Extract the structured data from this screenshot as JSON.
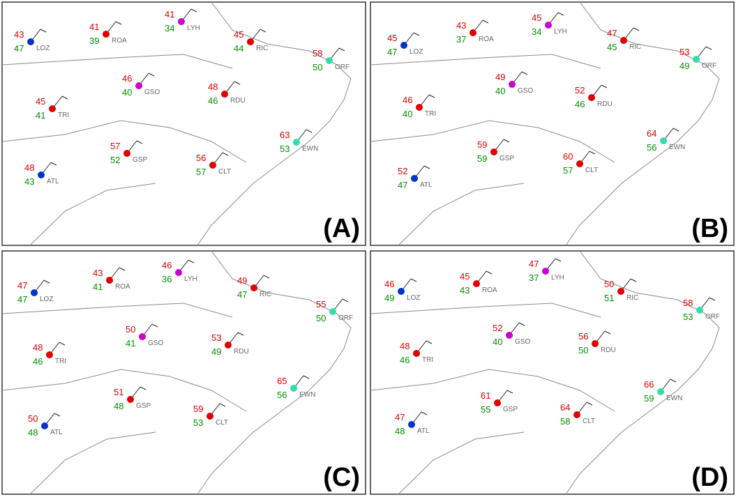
{
  "panels": [
    {
      "label": "(A)",
      "stations": [
        {
          "id": "LOZ",
          "temp": 43,
          "dew": 47,
          "color": "#0033cc"
        },
        {
          "id": "ROA",
          "temp": 41,
          "dew": 39,
          "color": "#e00000"
        },
        {
          "id": "LYH",
          "temp": 41,
          "dew": 34,
          "color": "#cc00cc"
        },
        {
          "id": "RIC",
          "temp": 45,
          "dew": 44,
          "color": "#e00000"
        },
        {
          "id": "ORF",
          "temp": 58,
          "dew": 50,
          "color": "#33ddaa"
        },
        {
          "id": "TRI",
          "temp": 45,
          "dew": 41,
          "color": "#e00000"
        },
        {
          "id": "GSO",
          "temp": 46,
          "dew": 40,
          "color": "#cc00cc"
        },
        {
          "id": "RDU",
          "temp": 48,
          "dew": 46,
          "color": "#e00000"
        },
        {
          "id": "EWN",
          "temp": 63,
          "dew": 53,
          "color": "#33ddaa"
        },
        {
          "id": "ATL",
          "temp": 48,
          "dew": 43,
          "color": "#0033cc"
        },
        {
          "id": "GSP",
          "temp": 57,
          "dew": 52,
          "color": "#e00000"
        },
        {
          "id": "CLT",
          "temp": 56,
          "dew": 57,
          "color": "#e00000"
        }
      ]
    },
    {
      "label": "(B)",
      "stations": [
        {
          "id": "LOZ",
          "temp": 45,
          "dew": 47,
          "color": "#0033cc"
        },
        {
          "id": "ROA",
          "temp": 43,
          "dew": 37,
          "color": "#e00000"
        },
        {
          "id": "LYH",
          "temp": 45,
          "dew": 34,
          "color": "#cc00cc"
        },
        {
          "id": "RIC",
          "temp": 47,
          "dew": 45,
          "color": "#e00000"
        },
        {
          "id": "ORF",
          "temp": 53,
          "dew": 49,
          "color": "#33ddaa"
        },
        {
          "id": "TRI",
          "temp": 46,
          "dew": 40,
          "color": "#e00000"
        },
        {
          "id": "GSO",
          "temp": 49,
          "dew": 40,
          "color": "#cc00cc"
        },
        {
          "id": "RDU",
          "temp": 52,
          "dew": 46,
          "color": "#e00000"
        },
        {
          "id": "EWN",
          "temp": 64,
          "dew": 56,
          "color": "#33ddaa"
        },
        {
          "id": "ATL",
          "temp": 52,
          "dew": 47,
          "color": "#0033cc"
        },
        {
          "id": "GSP",
          "temp": 59,
          "dew": 59,
          "color": "#e00000"
        },
        {
          "id": "CLT",
          "temp": 60,
          "dew": 57,
          "color": "#e00000"
        }
      ]
    },
    {
      "label": "(C)",
      "stations": [
        {
          "id": "LOZ",
          "temp": 47,
          "dew": 47,
          "color": "#0033cc"
        },
        {
          "id": "ROA",
          "temp": 43,
          "dew": 41,
          "color": "#e00000"
        },
        {
          "id": "LYH",
          "temp": 46,
          "dew": 36,
          "color": "#cc00cc"
        },
        {
          "id": "RIC",
          "temp": 49,
          "dew": 47,
          "color": "#e00000"
        },
        {
          "id": "ORF",
          "temp": 55,
          "dew": 50,
          "color": "#33ddaa"
        },
        {
          "id": "TRI",
          "temp": 48,
          "dew": 46,
          "color": "#e00000"
        },
        {
          "id": "GSO",
          "temp": 50,
          "dew": 41,
          "color": "#cc00cc"
        },
        {
          "id": "RDU",
          "temp": 53,
          "dew": 49,
          "color": "#e00000"
        },
        {
          "id": "EWN",
          "temp": 65,
          "dew": 56,
          "color": "#33ddaa"
        },
        {
          "id": "ATL",
          "temp": 50,
          "dew": 48,
          "color": "#0033cc"
        },
        {
          "id": "GSP",
          "temp": 51,
          "dew": 48,
          "color": "#e00000"
        },
        {
          "id": "CLT",
          "temp": 59,
          "dew": 53,
          "color": "#e00000"
        }
      ]
    },
    {
      "label": "(D)",
      "stations": [
        {
          "id": "LOZ",
          "temp": 46,
          "dew": 49,
          "color": "#0033cc"
        },
        {
          "id": "ROA",
          "temp": 45,
          "dew": 43,
          "color": "#e00000"
        },
        {
          "id": "LYH",
          "temp": 47,
          "dew": 37,
          "color": "#cc00cc"
        },
        {
          "id": "RIC",
          "temp": 50,
          "dew": 51,
          "color": "#e00000"
        },
        {
          "id": "ORF",
          "temp": 58,
          "dew": 53,
          "color": "#33ddaa"
        },
        {
          "id": "TRI",
          "temp": 48,
          "dew": 46,
          "color": "#e00000"
        },
        {
          "id": "GSO",
          "temp": 52,
          "dew": 40,
          "color": "#cc00cc"
        },
        {
          "id": "RDU",
          "temp": 56,
          "dew": 50,
          "color": "#e00000"
        },
        {
          "id": "EWN",
          "temp": 66,
          "dew": 59,
          "color": "#33ddaa"
        },
        {
          "id": "ATL",
          "temp": 47,
          "dew": 48,
          "color": "#0033cc"
        },
        {
          "id": "GSP",
          "temp": 61,
          "dew": 55,
          "color": "#e00000"
        },
        {
          "id": "CLT",
          "temp": 64,
          "dew": 58,
          "color": "#e00000"
        }
      ]
    }
  ]
}
